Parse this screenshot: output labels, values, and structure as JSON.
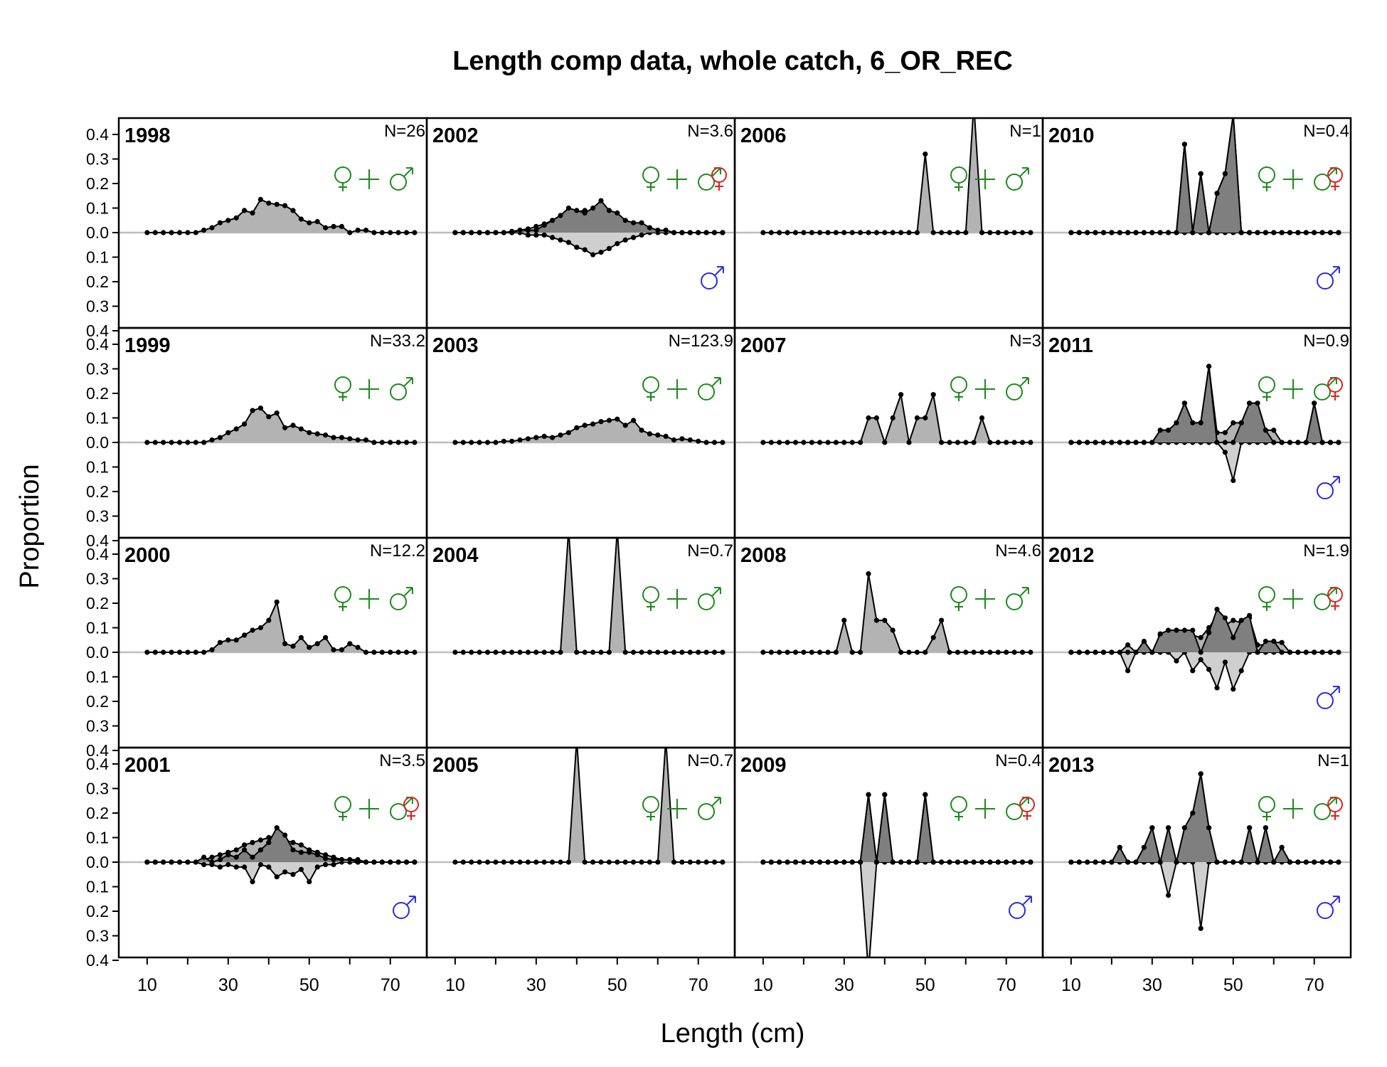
{
  "chart_data": {
    "type": "area",
    "title": "Length comp data, whole catch, 6_OR_REC",
    "xlabel": "Length (cm)",
    "ylabel": "Proportion",
    "xlim": [
      3,
      79
    ],
    "ylim": [
      -0.4,
      0.4
    ],
    "x_ticks": [
      10,
      30,
      50,
      70
    ],
    "x_minor_ticks": [
      10,
      20,
      30,
      40,
      50,
      60,
      70,
      80
    ],
    "y_ticks": [
      0.4,
      0.3,
      0.2,
      0.1,
      0.0,
      0.1,
      0.2,
      0.3,
      0.4
    ],
    "bins": [
      10,
      12,
      14,
      16,
      18,
      20,
      22,
      24,
      26,
      28,
      30,
      32,
      34,
      36,
      38,
      40,
      42,
      44,
      46,
      48,
      50,
      52,
      54,
      56,
      58,
      60,
      62,
      64,
      66,
      68,
      70,
      72,
      74,
      76
    ],
    "colors": {
      "combined_fill": "#b3b3b3",
      "female_fill": "#7f7f7f",
      "male_fill": "#cfcfcf",
      "outline": "#000000",
      "zero_line": "#bdbdbd",
      "combined_symbol": "#1a8a1a",
      "female_symbol": "#e02020",
      "male_symbol": "#2a2ad8"
    },
    "panels": [
      {
        "year": "1998",
        "n": "N=26",
        "sexed": false,
        "combined": {
          "24": 0.01,
          "26": 0.02,
          "28": 0.04,
          "30": 0.05,
          "32": 0.06,
          "34": 0.09,
          "36": 0.08,
          "38": 0.135,
          "40": 0.12,
          "42": 0.115,
          "44": 0.11,
          "46": 0.09,
          "48": 0.055,
          "50": 0.04,
          "52": 0.045,
          "54": 0.02,
          "56": 0.025,
          "58": 0.025,
          "62": 0.01,
          "64": 0.01
        }
      },
      {
        "year": "1999",
        "n": "N=33.2",
        "sexed": false,
        "combined": {
          "26": 0.01,
          "28": 0.02,
          "30": 0.04,
          "32": 0.055,
          "34": 0.075,
          "36": 0.13,
          "38": 0.14,
          "40": 0.105,
          "42": 0.12,
          "44": 0.06,
          "46": 0.07,
          "48": 0.055,
          "50": 0.04,
          "52": 0.035,
          "54": 0.03,
          "56": 0.02,
          "58": 0.02,
          "60": 0.015,
          "62": 0.01,
          "64": 0.01
        }
      },
      {
        "year": "2000",
        "n": "N=12.2",
        "sexed": false,
        "combined": {
          "26": 0.01,
          "28": 0.04,
          "30": 0.05,
          "32": 0.05,
          "34": 0.07,
          "36": 0.09,
          "38": 0.1,
          "40": 0.13,
          "42": 0.205,
          "44": 0.035,
          "46": 0.025,
          "48": 0.06,
          "50": 0.02,
          "52": 0.035,
          "54": 0.06,
          "56": 0.01,
          "58": 0.01,
          "60": 0.035,
          "62": 0.02
        }
      },
      {
        "year": "2001",
        "n": "N=3.5",
        "sexed": true,
        "combined": {
          "24": 0.01,
          "26": 0.02,
          "28": 0.03,
          "30": 0.04,
          "32": 0.05,
          "34": 0.07,
          "36": 0.08,
          "38": 0.09,
          "40": 0.1,
          "42": 0.11,
          "44": 0.09,
          "46": 0.08,
          "48": 0.07,
          "50": 0.05,
          "52": 0.04,
          "54": 0.03,
          "56": 0.02,
          "58": 0.01,
          "60": 0.01,
          "62": 0.01
        },
        "female": {
          "24": 0.02,
          "28": 0.01,
          "30": 0.03,
          "32": 0.02,
          "34": 0.05,
          "36": 0.02,
          "38": 0.05,
          "40": 0.08,
          "42": 0.14,
          "44": 0.11,
          "46": 0.05,
          "48": 0.04,
          "50": 0.04,
          "52": 0.03,
          "54": 0.015,
          "56": 0.01,
          "58": 0.01,
          "60": 0.01
        },
        "male": {
          "24": 0.01,
          "26": 0.01,
          "28": 0.02,
          "30": 0.01,
          "32": 0.02,
          "34": 0.02,
          "36": 0.08,
          "38": 0.01,
          "40": 0.02,
          "42": 0.06,
          "44": 0.04,
          "46": 0.05,
          "48": 0.03,
          "50": 0.08,
          "52": 0.02,
          "54": 0.01,
          "56": 0.01
        }
      },
      {
        "year": "2002",
        "n": "N=3.6",
        "sexed": true,
        "combined": {
          "24": 0.005,
          "26": 0.01,
          "28": 0.015,
          "30": 0.025,
          "32": 0.035,
          "34": 0.05,
          "36": 0.065,
          "38": 0.08,
          "40": 0.085,
          "42": 0.09,
          "44": 0.085,
          "46": 0.075,
          "48": 0.06,
          "50": 0.045,
          "52": 0.03,
          "54": 0.02,
          "56": 0.015,
          "58": 0.01,
          "60": 0.005
        },
        "female": {
          "26": 0.01,
          "28": 0.01,
          "30": 0.01,
          "32": 0.03,
          "34": 0.05,
          "36": 0.07,
          "38": 0.1,
          "40": 0.09,
          "42": 0.08,
          "44": 0.1,
          "46": 0.13,
          "48": 0.09,
          "50": 0.08,
          "52": 0.05,
          "54": 0.04,
          "56": 0.04,
          "58": 0.02,
          "60": 0.01,
          "62": 0.01
        },
        "male": {
          "28": 0.01,
          "30": 0.01,
          "32": 0.01,
          "34": 0.02,
          "36": 0.03,
          "38": 0.04,
          "40": 0.06,
          "42": 0.07,
          "44": 0.09,
          "46": 0.08,
          "48": 0.065,
          "50": 0.045,
          "52": 0.03,
          "54": 0.02,
          "56": 0.01
        }
      },
      {
        "year": "2003",
        "n": "N=123.9",
        "sexed": false,
        "combined": {
          "22": 0.005,
          "24": 0.005,
          "26": 0.01,
          "28": 0.015,
          "30": 0.02,
          "32": 0.025,
          "34": 0.02,
          "36": 0.03,
          "38": 0.04,
          "40": 0.06,
          "42": 0.07,
          "44": 0.075,
          "46": 0.085,
          "48": 0.09,
          "50": 0.095,
          "52": 0.07,
          "54": 0.09,
          "56": 0.05,
          "58": 0.035,
          "60": 0.03,
          "62": 0.025,
          "64": 0.01,
          "66": 0.015,
          "68": 0.01,
          "70": 0.005
        }
      },
      {
        "year": "2004",
        "n": "N=0.7",
        "sexed": false,
        "combined": {
          "38": 0.5,
          "50": 0.5
        }
      },
      {
        "year": "2005",
        "n": "N=0.7",
        "sexed": false,
        "combined": {
          "40": 0.5,
          "62": 0.5
        }
      },
      {
        "year": "2006",
        "n": "N=1",
        "sexed": false,
        "combined": {
          "50": 0.32,
          "62": 0.68
        }
      },
      {
        "year": "2007",
        "n": "N=3",
        "sexed": false,
        "combined": {
          "36": 0.1,
          "38": 0.1,
          "42": 0.1,
          "44": 0.195,
          "48": 0.1,
          "50": 0.1,
          "52": 0.195,
          "64": 0.1
        }
      },
      {
        "year": "2008",
        "n": "N=4.6",
        "sexed": false,
        "combined": {
          "30": 0.13,
          "36": 0.32,
          "38": 0.13,
          "40": 0.13,
          "42": 0.09,
          "52": 0.06,
          "54": 0.13
        }
      },
      {
        "year": "2009",
        "n": "N=0.4",
        "sexed": true,
        "combined": {
          "36": 0.275,
          "40": 0.275,
          "50": 0.275
        },
        "female": {
          "36": 0.275,
          "40": 0.275,
          "50": 0.275
        },
        "male": {
          "36": 0.55
        }
      },
      {
        "year": "2010",
        "n": "N=0.4",
        "sexed": true,
        "combined": {
          "38": 0.36,
          "42": 0.24,
          "46": 0.16,
          "48": 0.24,
          "50": 0.48
        },
        "female": {
          "38": 0.36,
          "42": 0.24,
          "46": 0.16,
          "48": 0.24,
          "50": 0.48
        },
        "male": {}
      },
      {
        "year": "2011",
        "n": "N=0.9",
        "sexed": true,
        "combined": {
          "32": 0.05,
          "34": 0.05,
          "36": 0.08,
          "38": 0.16,
          "40": 0.08,
          "42": 0.08,
          "44": 0.31,
          "46": 0.04,
          "48": 0.04,
          "50": 0.08,
          "52": 0.08,
          "54": 0.16,
          "56": 0.16,
          "58": 0.05,
          "60": 0.05,
          "70": 0.16
        },
        "female": {
          "32": 0.05,
          "34": 0.05,
          "36": 0.08,
          "38": 0.16,
          "40": 0.08,
          "42": 0.08,
          "44": 0.31,
          "52": 0.08,
          "54": 0.16,
          "56": 0.16,
          "58": 0.05,
          "70": 0.16
        },
        "male": {
          "48": 0.04,
          "50": 0.155
        }
      },
      {
        "year": "2012",
        "n": "N=1.9",
        "sexed": true,
        "combined": {
          "24": 0.03,
          "28": 0.04,
          "32": 0.07,
          "34": 0.08,
          "36": 0.09,
          "38": 0.08,
          "40": 0.07,
          "42": 0.06,
          "44": 0.1,
          "46": 0.15,
          "48": 0.11,
          "50": 0.13,
          "52": 0.12,
          "54": 0.14,
          "56": 0.03,
          "58": 0.03,
          "60": 0.04,
          "62": 0.04
        },
        "female": {
          "28": 0.045,
          "32": 0.075,
          "34": 0.09,
          "36": 0.09,
          "38": 0.09,
          "40": 0.09,
          "44": 0.08,
          "46": 0.175,
          "48": 0.14,
          "50": 0.06,
          "52": 0.13,
          "54": 0.15,
          "58": 0.045,
          "60": 0.045
        },
        "male": {
          "24": 0.075,
          "36": 0.035,
          "40": 0.075,
          "42": 0.03,
          "44": 0.07,
          "46": 0.145,
          "48": 0.04,
          "50": 0.15,
          "52": 0.075
        }
      },
      {
        "year": "2013",
        "n": "N=1",
        "sexed": true,
        "combined": {
          "22": 0.06,
          "28": 0.06,
          "30": 0.14,
          "34": 0.14,
          "38": 0.14,
          "40": 0.19,
          "42": 0.36,
          "44": 0.14,
          "54": 0.14,
          "58": 0.14,
          "62": 0.06
        },
        "female": {
          "22": 0.06,
          "28": 0.06,
          "30": 0.14,
          "34": 0.14,
          "38": 0.14,
          "40": 0.2,
          "42": 0.36,
          "44": 0.14,
          "54": 0.14,
          "58": 0.14,
          "62": 0.06
        },
        "male": {
          "34": 0.135,
          "42": 0.27
        }
      }
    ],
    "grid": false,
    "legend": "none"
  }
}
